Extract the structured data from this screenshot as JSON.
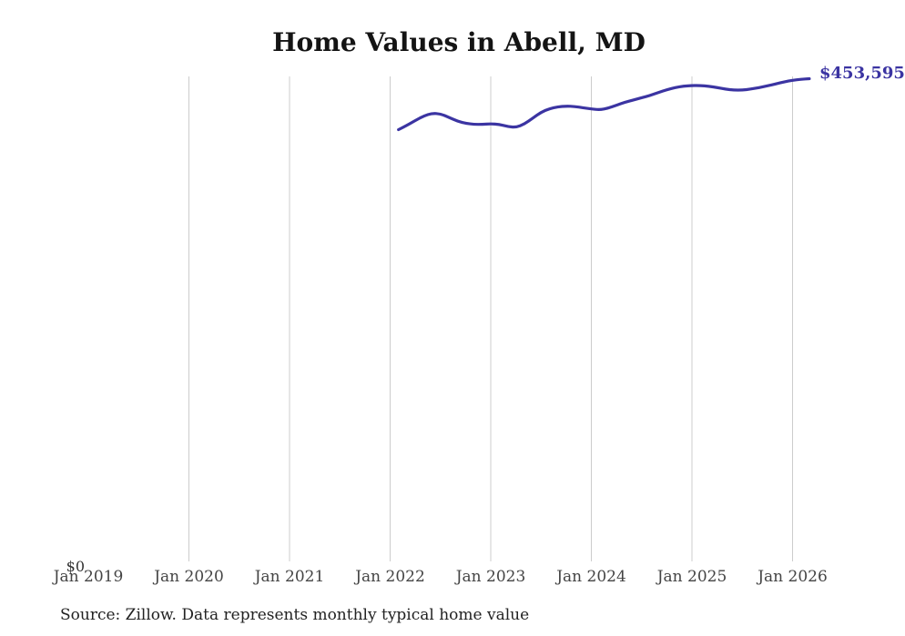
{
  "title": "Home Values in Abell, MD",
  "source_note": "Source: Zillow. Data represents monthly typical home value",
  "end_label": "$453,595",
  "y_axis": {
    "zero_label": "$0"
  },
  "x_axis": {
    "tick_labels": [
      "Jan 2019",
      "Jan 2020",
      "Jan 2021",
      "Jan 2022",
      "Jan 2023",
      "Jan 2024",
      "Jan 2025",
      "Jan 2026"
    ]
  },
  "colors": {
    "line": "#3b34a2",
    "gridline": "#cccccc",
    "title": "#141414",
    "axis_label": "#444444",
    "source": "#222222"
  },
  "chart_data": {
    "type": "line",
    "title": "Home Values in Abell, MD",
    "ylabel": "",
    "xlabel": "",
    "ylim": [
      0,
      455000
    ],
    "grid": "vertical-only",
    "legend": "none",
    "end_point_label": "$453,595",
    "x": [
      "2022-02",
      "2022-03",
      "2022-04",
      "2022-05",
      "2022-06",
      "2022-07",
      "2022-08",
      "2022-09",
      "2022-10",
      "2022-11",
      "2022-12",
      "2023-01",
      "2023-02",
      "2023-03",
      "2023-04",
      "2023-05",
      "2023-06",
      "2023-07",
      "2023-08",
      "2023-09",
      "2023-10",
      "2023-11",
      "2023-12",
      "2024-01",
      "2024-02",
      "2024-03",
      "2024-04",
      "2024-05",
      "2024-06",
      "2024-07",
      "2024-08",
      "2024-09",
      "2024-10",
      "2024-11",
      "2024-12",
      "2025-01",
      "2025-02",
      "2025-03",
      "2025-04",
      "2025-05",
      "2025-06",
      "2025-07",
      "2025-08",
      "2025-09",
      "2025-10",
      "2025-11",
      "2025-12",
      "2026-01",
      "2026-02",
      "2026-03"
    ],
    "values": [
      406000,
      410000,
      414500,
      418700,
      421300,
      420800,
      417500,
      414000,
      411900,
      410900,
      410900,
      411500,
      410900,
      409000,
      408100,
      411100,
      416600,
      422200,
      425600,
      427300,
      428000,
      427700,
      426400,
      425300,
      424500,
      426000,
      428800,
      431600,
      433600,
      435800,
      437900,
      440700,
      443300,
      445400,
      446600,
      447200,
      447200,
      446500,
      445400,
      443800,
      443000,
      443000,
      443800,
      445300,
      447000,
      448700,
      450600,
      452100,
      453000,
      453595
    ]
  }
}
